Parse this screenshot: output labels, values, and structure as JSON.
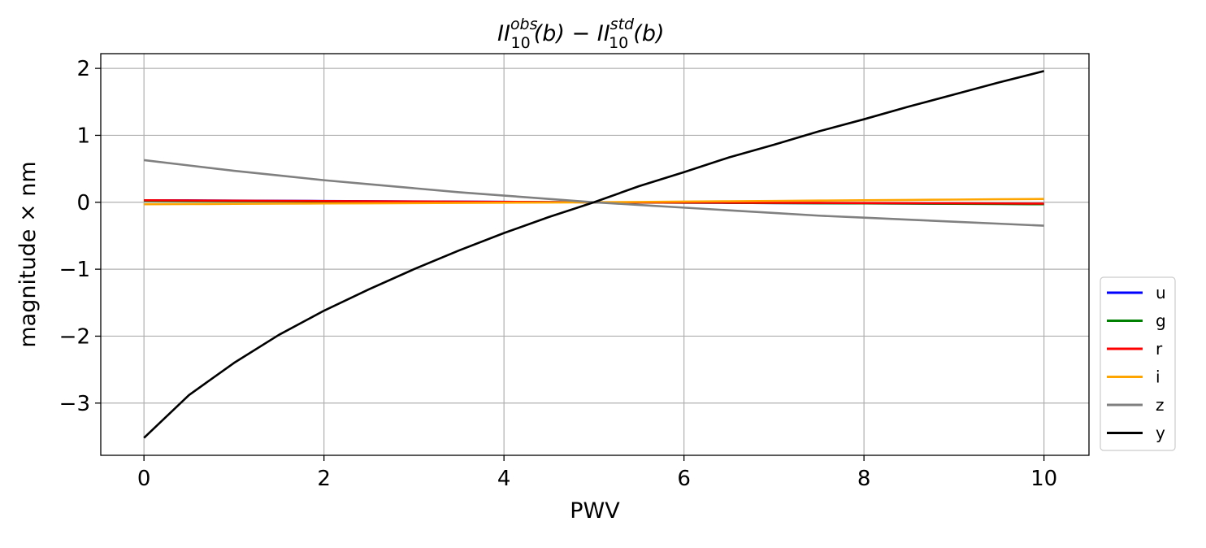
{
  "chart_data": {
    "type": "line",
    "title": {
      "base": "II",
      "sup1": "obs",
      "sub1": "10",
      "arg1": "(b)",
      "minus": " − ",
      "sup2": "std",
      "sub2": "10",
      "arg2": "(b)"
    },
    "xlabel": "PWV",
    "ylabel": "magnitude × nm",
    "xlim": [
      -0.48,
      10.5
    ],
    "ylim": [
      -3.78,
      2.22
    ],
    "xticks": [
      0,
      2,
      4,
      6,
      8,
      10
    ],
    "xtick_labels": [
      "0",
      "2",
      "4",
      "6",
      "8",
      "10"
    ],
    "yticks": [
      2,
      1,
      0,
      -1,
      -2,
      -3
    ],
    "ytick_labels": [
      "2",
      "1",
      "0",
      "−1",
      "−2",
      "−3"
    ],
    "grid": true,
    "legend_position": "outside-right-lower",
    "x": [
      0,
      0.5,
      1,
      1.5,
      2,
      2.5,
      3,
      3.5,
      4,
      4.5,
      5,
      5.5,
      6,
      6.5,
      7,
      7.5,
      8,
      8.5,
      9,
      9.5,
      10
    ],
    "series": [
      {
        "name": "u",
        "color": "#0000ff",
        "values": [
          0.03,
          0.028,
          0.026,
          0.023,
          0.02,
          0.017,
          0.014,
          0.01,
          0.007,
          0.003,
          0.0,
          -0.003,
          -0.006,
          -0.009,
          -0.012,
          -0.014,
          -0.017,
          -0.019,
          -0.021,
          -0.023,
          -0.025
        ]
      },
      {
        "name": "g",
        "color": "#008000",
        "values": [
          0.02,
          0.018,
          0.016,
          0.014,
          0.012,
          0.01,
          0.008,
          0.006,
          0.004,
          0.002,
          0.0,
          -0.003,
          -0.006,
          -0.009,
          -0.012,
          -0.015,
          -0.018,
          -0.021,
          -0.024,
          -0.027,
          -0.03
        ]
      },
      {
        "name": "r",
        "color": "#ff0000",
        "values": [
          0.03,
          0.027,
          0.024,
          0.021,
          0.018,
          0.015,
          0.012,
          0.009,
          0.006,
          0.003,
          0.0,
          -0.002,
          -0.004,
          -0.006,
          -0.008,
          -0.01,
          -0.012,
          -0.014,
          -0.016,
          -0.018,
          -0.02
        ]
      },
      {
        "name": "i",
        "color": "#ffa500",
        "values": [
          -0.03,
          -0.027,
          -0.024,
          -0.021,
          -0.018,
          -0.015,
          -0.012,
          -0.009,
          -0.006,
          -0.003,
          0.0,
          0.005,
          0.01,
          0.015,
          0.02,
          0.025,
          0.03,
          0.035,
          0.04,
          0.045,
          0.05
        ]
      },
      {
        "name": "z",
        "color": "#808080",
        "values": [
          0.63,
          0.55,
          0.47,
          0.4,
          0.33,
          0.27,
          0.21,
          0.15,
          0.1,
          0.05,
          0.0,
          -0.04,
          -0.08,
          -0.12,
          -0.16,
          -0.2,
          -0.23,
          -0.26,
          -0.29,
          -0.32,
          -0.35
        ]
      },
      {
        "name": "y",
        "color": "#000000",
        "values": [
          -3.52,
          -2.88,
          -2.4,
          -1.98,
          -1.62,
          -1.3,
          -1.0,
          -0.72,
          -0.46,
          -0.22,
          0.0,
          0.24,
          0.45,
          0.67,
          0.86,
          1.06,
          1.24,
          1.43,
          1.61,
          1.79,
          1.96
        ]
      }
    ]
  }
}
